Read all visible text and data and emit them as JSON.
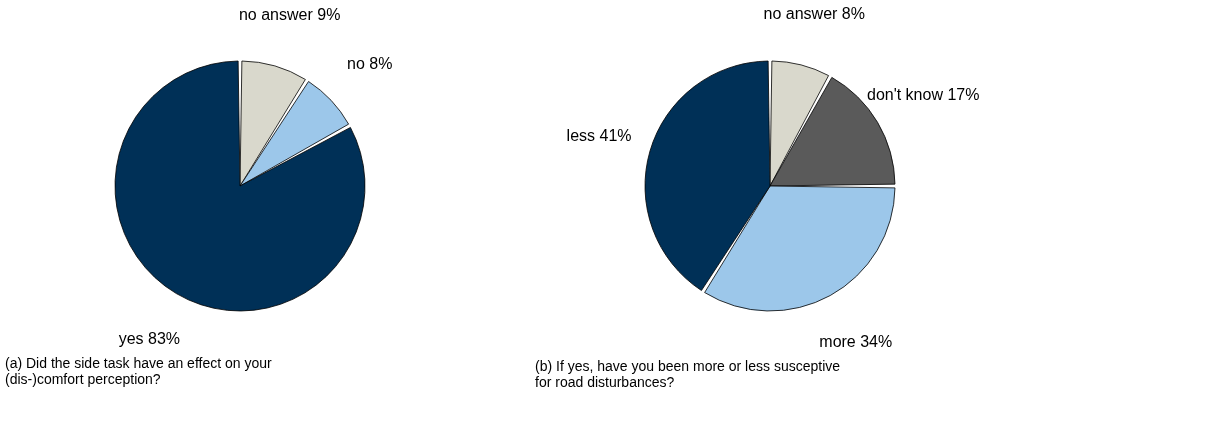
{
  "chart_data": [
    {
      "type": "pie",
      "title": "(a) Did the side task have an effect on your (dis-)comfort perception?",
      "categories": [
        "no answer",
        "no",
        "yes"
      ],
      "values": [
        9,
        8,
        83
      ],
      "value_labels": [
        "9%",
        "8%",
        "83%"
      ],
      "colors": [
        "#d9d8cc",
        "#9cc7ea",
        "#003057"
      ]
    },
    {
      "type": "pie",
      "title": "(b) If yes, have you been more or less susceptive for road disturbances?",
      "categories": [
        "no answer",
        "don't know",
        "more",
        "less"
      ],
      "values": [
        8,
        17,
        34,
        41
      ],
      "value_labels": [
        "8%",
        "17%",
        "34%",
        "41%"
      ],
      "colors": [
        "#d9d8cc",
        "#5a5a5a",
        "#9cc7ea",
        "#003057"
      ]
    }
  ]
}
